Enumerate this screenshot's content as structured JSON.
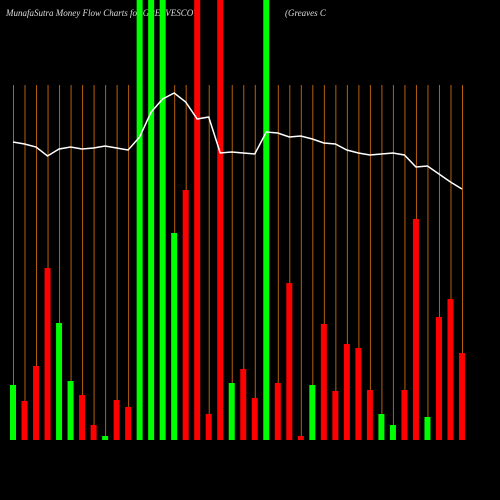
{
  "chart_data": {
    "type": "bar",
    "title": "MunafaSutra  Money Flow  Charts for GREAVESCOT",
    "subtitle": "(Greaves C",
    "categories": [
      null,
      null,
      null,
      null,
      null,
      null,
      null,
      null,
      null,
      null,
      null,
      null,
      null,
      null,
      null,
      null,
      null,
      null,
      null,
      null,
      null,
      null,
      null,
      null,
      null,
      null,
      null,
      null,
      null,
      null,
      null,
      null,
      null,
      null,
      null,
      null,
      null,
      null,
      null,
      null
    ],
    "values": [
      55,
      39,
      74,
      172,
      117,
      59,
      45,
      15,
      4,
      40,
      33,
      440,
      440,
      440,
      207,
      250,
      440,
      26,
      440,
      57,
      71,
      42,
      440,
      57,
      157,
      4,
      55,
      116,
      49,
      96,
      92,
      50,
      26,
      15,
      50,
      221,
      23,
      123,
      141,
      87
    ],
    "colors": [
      "#00ff00",
      "#ff0000",
      "#ff0000",
      "#ff0000",
      "#00ff00",
      "#00ff00",
      "#ff0000",
      "#ff0000",
      "#00ff00",
      "#ff0000",
      "#ff0000",
      "#00ff00",
      "#00ff00",
      "#00ff00",
      "#00ff00",
      "#ff0000",
      "#ff0000",
      "#ff0000",
      "#ff0000",
      "#00ff00",
      "#ff0000",
      "#ff0000",
      "#00ff00",
      "#ff0000",
      "#ff0000",
      "#ff0000",
      "#00ff00",
      "#ff0000",
      "#ff0000",
      "#ff0000",
      "#ff0000",
      "#ff0000",
      "#00ff00",
      "#00ff00",
      "#ff0000",
      "#ff0000",
      "#00ff00",
      "#ff0000",
      "#ff0000",
      "#ff0000"
    ],
    "line": {
      "color": "#ffffff",
      "values": [
        298,
        296,
        293,
        284,
        291,
        293,
        291,
        292,
        294,
        292,
        290,
        303,
        328,
        341,
        347,
        338,
        321,
        323,
        287,
        288,
        287,
        286,
        308,
        307,
        303,
        304,
        301,
        297,
        296,
        290,
        287,
        285,
        286,
        287,
        285,
        273,
        274,
        266,
        258,
        251
      ]
    },
    "ylim": [
      0,
      440
    ],
    "grid": true,
    "grid_color": "#b5600c"
  }
}
